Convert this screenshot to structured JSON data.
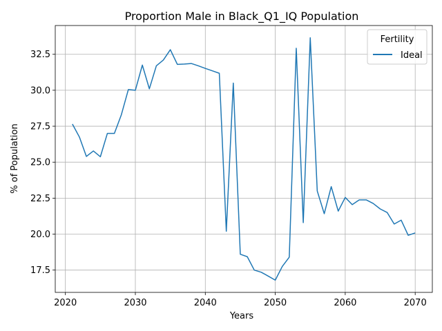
{
  "chart_data": {
    "type": "line",
    "title": "Proportion Male in Black_Q1_IQ Population",
    "xlabel": "Years",
    "ylabel": "% of Population",
    "xlim": [
      2018.55,
      2072.45
    ],
    "ylim": [
      15.95,
      34.5
    ],
    "x_ticks": [
      2020,
      2030,
      2040,
      2050,
      2060,
      2070
    ],
    "y_ticks": [
      17.5,
      20.0,
      22.5,
      25.0,
      27.5,
      30.0,
      32.5
    ],
    "x_tick_labels": [
      "2020",
      "2030",
      "2040",
      "2050",
      "2060",
      "2070"
    ],
    "y_tick_labels": [
      "17.5",
      "20.0",
      "22.5",
      "25.0",
      "27.5",
      "30.0",
      "32.5"
    ],
    "grid": true,
    "legend": {
      "title": "Fertility",
      "position": "top-right"
    },
    "series": [
      {
        "name": "Ideal",
        "color": "#1f77b4",
        "x": [
          2021,
          2022,
          2023,
          2024,
          2025,
          2026,
          2027,
          2028,
          2029,
          2030,
          2031,
          2032,
          2033,
          2034,
          2035,
          2036,
          2037,
          2038,
          2039,
          2040,
          2041,
          2042,
          2043,
          2044,
          2045,
          2046,
          2047,
          2048,
          2049,
          2050,
          2051,
          2052,
          2053,
          2054,
          2055,
          2056,
          2057,
          2058,
          2059,
          2060,
          2061,
          2062,
          2063,
          2064,
          2065,
          2066,
          2067,
          2068,
          2069,
          2070
        ],
        "values": [
          27.65,
          26.75,
          25.4,
          25.78,
          25.38,
          27.0,
          27.0,
          28.3,
          30.05,
          30.0,
          31.75,
          30.1,
          31.7,
          32.1,
          32.82,
          31.8,
          31.82,
          31.86,
          31.7,
          31.52,
          31.35,
          31.18,
          20.2,
          30.5,
          18.6,
          18.43,
          17.5,
          17.35,
          17.08,
          16.8,
          17.75,
          18.4,
          32.92,
          20.8,
          33.65,
          23.0,
          21.42,
          23.3,
          21.6,
          22.55,
          22.05,
          22.38,
          22.38,
          22.13,
          21.75,
          21.5,
          20.7,
          20.97,
          19.92,
          20.08
        ]
      }
    ]
  }
}
